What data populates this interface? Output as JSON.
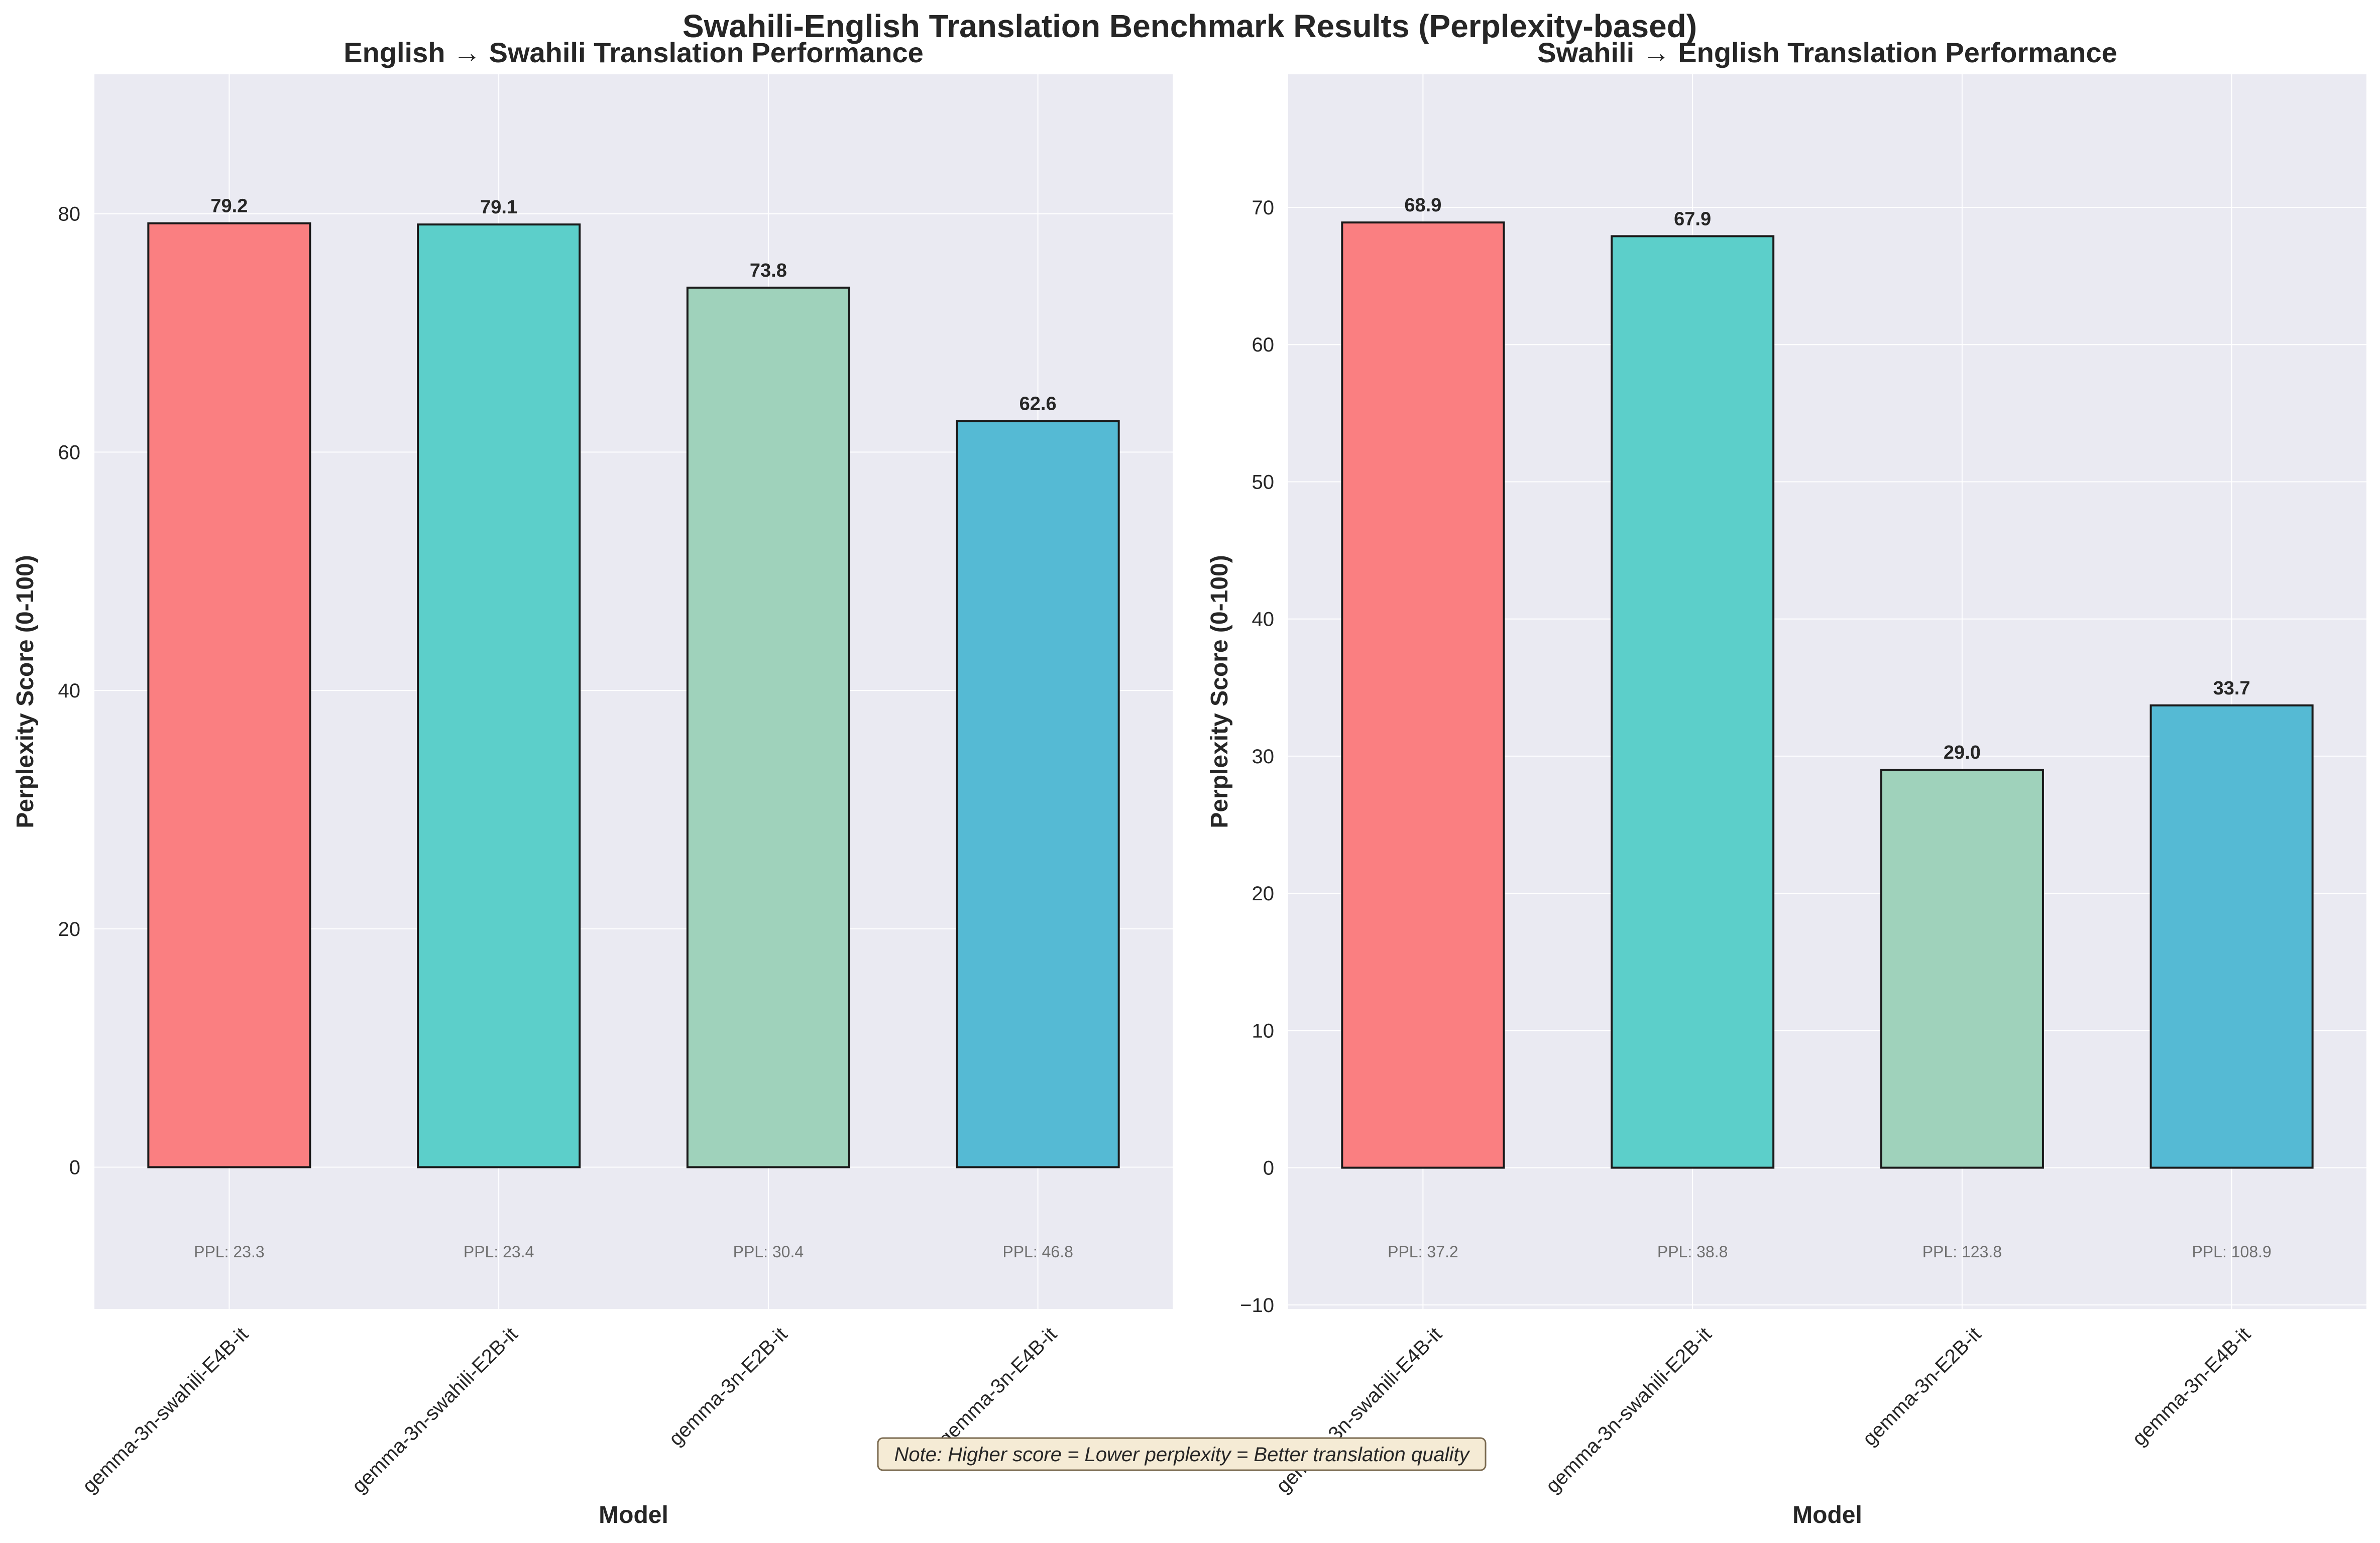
{
  "figure": {
    "title": "Swahili-English Translation Benchmark Results (Perplexity-based)",
    "note": "Note: Higher score = Lower perplexity = Better translation quality",
    "background": "#eaeaf2",
    "bar_edge": "#1a1a1a",
    "note_bg": "#f5ebd5"
  },
  "chart_data": [
    {
      "type": "bar",
      "title": "English → Swahili Translation Performance",
      "xlabel": "Model",
      "ylabel": "Perplexity Score (0-100)",
      "categories": [
        "gemma-3n-swahili-E4B-it",
        "gemma-3n-swahili-E2B-it",
        "gemma-3n-E2B-it",
        "gemma-3n-E4B-it"
      ],
      "values": [
        79.2,
        79.1,
        73.8,
        62.6
      ],
      "value_labels": [
        "79.2",
        "79.1",
        "73.8",
        "62.6"
      ],
      "ppl_labels": [
        "PPL: 23.3",
        "PPL: 23.4",
        "PPL: 30.4",
        "PPL: 46.8"
      ],
      "colors": [
        "#fa7f81",
        "#5ccfca",
        "#9fd2bb",
        "#55bad4"
      ],
      "ylim": [
        -11.9,
        91.7
      ],
      "yticks": [
        0,
        20,
        40,
        60,
        80
      ],
      "ytick_labels": [
        "0",
        "20",
        "40",
        "60",
        "80"
      ],
      "grid": true
    },
    {
      "type": "bar",
      "title": "Swahili → English Translation Performance",
      "xlabel": "Model",
      "ylabel": "Perplexity Score (0-100)",
      "categories": [
        "gemma-3n-swahili-E4B-it",
        "gemma-3n-swahili-E2B-it",
        "gemma-3n-E2B-it",
        "gemma-3n-E4B-it"
      ],
      "values": [
        68.9,
        67.9,
        29.0,
        33.7
      ],
      "value_labels": [
        "68.9",
        "67.9",
        "29.0",
        "33.7"
      ],
      "ppl_labels": [
        "PPL: 37.2",
        "PPL: 38.8",
        "PPL: 123.8",
        "PPL: 108.9"
      ],
      "colors": [
        "#fa7f81",
        "#5ccfca",
        "#9fd2bb",
        "#55bad4"
      ],
      "ylim": [
        -10.3,
        79.7
      ],
      "yticks": [
        -10,
        0,
        10,
        20,
        30,
        40,
        50,
        60,
        70
      ],
      "ytick_labels": [
        "−10",
        "0",
        "10",
        "20",
        "30",
        "40",
        "50",
        "60",
        "70"
      ],
      "grid": true
    }
  ]
}
